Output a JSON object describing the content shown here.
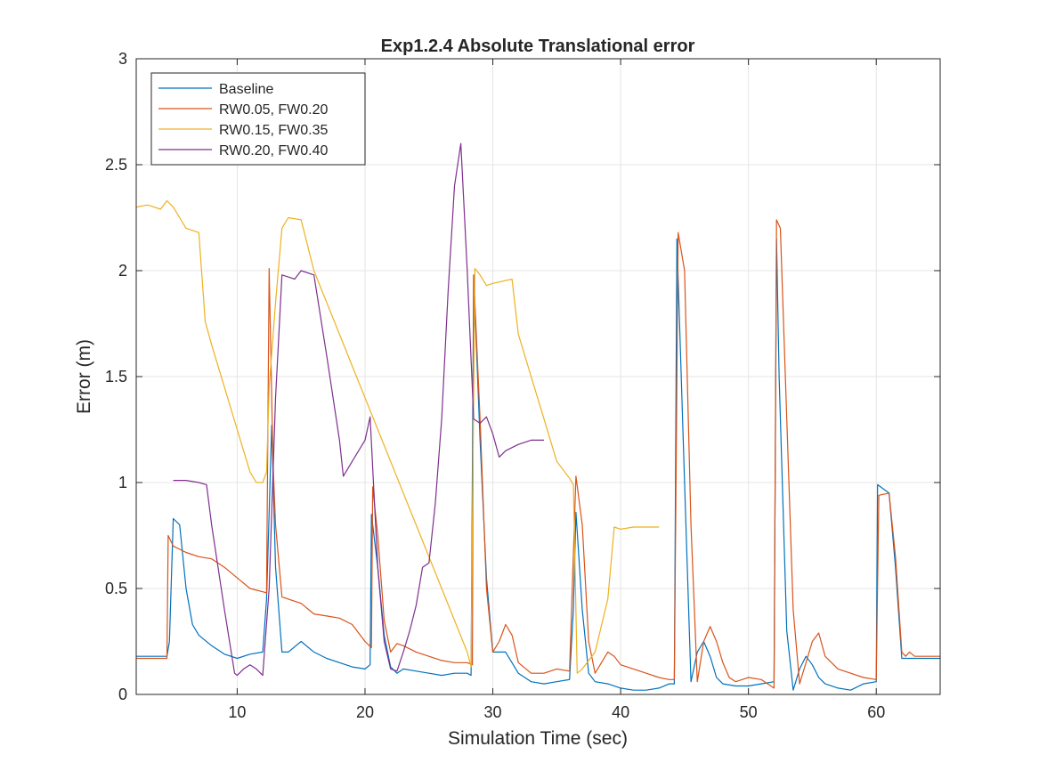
{
  "chart_data": {
    "type": "line",
    "title": "Exp1.2.4 Absolute Translational error",
    "xlabel": "Simulation Time (sec)",
    "ylabel": "Error (m)",
    "xlim": [
      2.1,
      65
    ],
    "ylim": [
      0,
      3
    ],
    "xticks": [
      10,
      20,
      30,
      40,
      50,
      60
    ],
    "yticks": [
      0,
      0.5,
      1,
      1.5,
      2,
      2.5,
      3
    ],
    "xtick_labels": [
      "10",
      "20",
      "30",
      "40",
      "50",
      "60"
    ],
    "ytick_labels": [
      "0",
      "0.5",
      "1",
      "1.5",
      "2",
      "2.5",
      "3"
    ],
    "grid": true,
    "legend_position": "top-left",
    "series": [
      {
        "name": "Baseline",
        "color": "#0072BD",
        "x": [
          2.1,
          4.5,
          4.7,
          5.0,
          5.5,
          6.0,
          6.5,
          7.0,
          8.0,
          9.0,
          10.0,
          11.0,
          12.0,
          12.3,
          12.7,
          13.0,
          13.5,
          14.0,
          15.0,
          16.0,
          17.0,
          18.0,
          19.0,
          20.0,
          20.4,
          20.5,
          21.0,
          21.5,
          22.0,
          22.5,
          23.0,
          24.0,
          25.0,
          26.0,
          27.0,
          28.0,
          28.3,
          28.5,
          29.0,
          29.5,
          30.0,
          31.0,
          32.0,
          33.0,
          34.0,
          35.0,
          36.0,
          36.3,
          36.5,
          37.0,
          37.5,
          38.0,
          39.0,
          40.0,
          41.0,
          42.0,
          43.0,
          43.8,
          44.2,
          44.4,
          45.0,
          45.5,
          46.0,
          46.5,
          47.0,
          47.5,
          48.0,
          49.0,
          50.0,
          51.0,
          52.0,
          52.2,
          52.4,
          53.0,
          53.5,
          54.0,
          54.5,
          55.0,
          55.5,
          56.0,
          57.0,
          58.0,
          59.0,
          60.0,
          60.1,
          61.0,
          61.5,
          62.0,
          63.0,
          64.0,
          65.0
        ],
        "y": [
          0.18,
          0.18,
          0.25,
          0.83,
          0.8,
          0.5,
          0.33,
          0.28,
          0.23,
          0.19,
          0.17,
          0.19,
          0.2,
          0.45,
          1.27,
          0.6,
          0.2,
          0.2,
          0.25,
          0.2,
          0.17,
          0.15,
          0.13,
          0.12,
          0.14,
          0.85,
          0.6,
          0.28,
          0.13,
          0.1,
          0.12,
          0.11,
          0.1,
          0.09,
          0.1,
          0.1,
          0.09,
          1.98,
          1.2,
          0.55,
          0.2,
          0.2,
          0.1,
          0.06,
          0.05,
          0.06,
          0.07,
          0.4,
          0.86,
          0.4,
          0.1,
          0.06,
          0.05,
          0.03,
          0.02,
          0.02,
          0.03,
          0.05,
          0.05,
          2.15,
          1.0,
          0.06,
          0.2,
          0.25,
          0.18,
          0.08,
          0.05,
          0.04,
          0.04,
          0.05,
          0.06,
          2.15,
          1.5,
          0.3,
          0.02,
          0.12,
          0.18,
          0.14,
          0.08,
          0.05,
          0.03,
          0.02,
          0.05,
          0.06,
          0.99,
          0.95,
          0.6,
          0.17,
          0.17,
          0.17,
          0.17
        ]
      },
      {
        "name": "RW0.05, FW0.20",
        "color": "#D95319",
        "x": [
          2.1,
          4.5,
          4.6,
          5.0,
          6.0,
          7.0,
          8.0,
          9.0,
          10.0,
          11.0,
          12.3,
          12.5,
          12.8,
          13.0,
          13.5,
          14.0,
          15.0,
          16.0,
          17.0,
          18.0,
          19.0,
          20.0,
          20.5,
          20.6,
          21.0,
          21.5,
          22.0,
          22.5,
          23.0,
          24.0,
          25.0,
          26.0,
          27.0,
          28.0,
          28.4,
          28.5,
          29.0,
          29.5,
          30.0,
          30.5,
          31.0,
          31.5,
          32.0,
          33.0,
          34.0,
          35.0,
          36.0,
          36.5,
          37.0,
          37.5,
          38.0,
          39.0,
          39.5,
          40.0,
          41.0,
          42.0,
          43.0,
          43.8,
          44.2,
          44.5,
          45.0,
          45.5,
          46.0,
          46.5,
          47.0,
          47.5,
          48.0,
          48.5,
          49.0,
          50.0,
          51.0,
          51.5,
          52.0,
          52.2,
          52.5,
          53.0,
          53.5,
          54.0,
          54.5,
          55.0,
          55.5,
          56.0,
          57.0,
          58.0,
          59.0,
          60.0,
          60.2,
          61.0,
          61.5,
          62.0,
          62.3,
          62.6,
          63.0,
          64.0,
          65.0
        ],
        "y": [
          0.17,
          0.17,
          0.75,
          0.7,
          0.67,
          0.65,
          0.64,
          0.6,
          0.55,
          0.5,
          0.48,
          2.01,
          1.1,
          0.8,
          0.46,
          0.45,
          0.43,
          0.38,
          0.37,
          0.36,
          0.33,
          0.25,
          0.22,
          0.98,
          0.75,
          0.35,
          0.2,
          0.24,
          0.23,
          0.2,
          0.18,
          0.16,
          0.15,
          0.15,
          0.14,
          1.98,
          1.3,
          0.5,
          0.2,
          0.25,
          0.33,
          0.28,
          0.15,
          0.1,
          0.1,
          0.12,
          0.11,
          1.03,
          0.8,
          0.25,
          0.1,
          0.2,
          0.18,
          0.14,
          0.12,
          0.1,
          0.08,
          0.07,
          0.07,
          2.18,
          2.0,
          0.8,
          0.06,
          0.25,
          0.32,
          0.25,
          0.15,
          0.08,
          0.06,
          0.08,
          0.07,
          0.05,
          0.03,
          2.24,
          2.2,
          1.3,
          0.4,
          0.05,
          0.15,
          0.25,
          0.29,
          0.18,
          0.12,
          0.1,
          0.08,
          0.07,
          0.94,
          0.95,
          0.65,
          0.2,
          0.18,
          0.2,
          0.18,
          0.18,
          0.18
        ]
      },
      {
        "name": "RW0.15, FW0.35",
        "color": "#EDB120",
        "x": [
          2.1,
          3.0,
          3.5,
          4.0,
          4.5,
          5.0,
          5.5,
          6.0,
          6.5,
          7.0,
          7.5,
          8.0,
          9.0,
          10.0,
          11.0,
          11.5,
          12.0,
          12.3,
          12.5,
          13.0,
          13.5,
          14.0,
          15.0,
          16.0,
          17.0,
          18.0,
          19.0,
          20.0,
          22.0,
          24.0,
          26.0,
          28.0,
          28.3,
          28.6,
          29.0,
          29.5,
          30.0,
          31.5,
          32.0,
          34.0,
          35.0,
          36.0,
          36.3,
          36.6,
          37.0,
          38.0,
          39.0,
          39.5,
          40.0,
          41.0,
          42.0,
          43.0
        ],
        "y": [
          2.3,
          2.31,
          2.3,
          2.29,
          2.33,
          2.3,
          2.25,
          2.2,
          2.19,
          2.18,
          1.76,
          1.65,
          1.45,
          1.25,
          1.05,
          1.0,
          1.0,
          1.05,
          1.45,
          1.85,
          2.2,
          2.25,
          2.24,
          2.0,
          1.85,
          1.7,
          1.55,
          1.4,
          1.1,
          0.8,
          0.5,
          0.2,
          0.13,
          2.01,
          1.98,
          1.93,
          1.94,
          1.96,
          1.7,
          1.3,
          1.1,
          1.02,
          0.99,
          0.1,
          0.12,
          0.2,
          0.45,
          0.79,
          0.78,
          0.79,
          0.79,
          0.79
        ]
      },
      {
        "name": "RW0.20, FW0.40",
        "color": "#7E2F8E",
        "x": [
          5.0,
          6.0,
          7.0,
          7.6,
          8.0,
          9.0,
          9.8,
          10.0,
          10.5,
          11.0,
          11.5,
          12.0,
          12.5,
          13.0,
          13.5,
          14.0,
          14.5,
          15.0,
          16.0,
          17.0,
          18.0,
          18.3,
          19.0,
          20.0,
          20.4,
          21.0,
          21.5,
          22.0,
          22.5,
          23.0,
          23.5,
          24.0,
          24.5,
          25.0,
          25.5,
          26.0,
          26.5,
          27.0,
          27.5,
          28.0,
          28.5,
          29.0,
          29.5,
          30.0,
          30.5,
          31.0,
          32.0,
          33.0,
          34.0
        ],
        "y": [
          1.01,
          1.01,
          1.0,
          0.99,
          0.8,
          0.4,
          0.1,
          0.09,
          0.12,
          0.14,
          0.12,
          0.09,
          0.5,
          1.4,
          1.98,
          1.97,
          1.96,
          2.0,
          1.98,
          1.6,
          1.2,
          1.03,
          1.1,
          1.2,
          1.31,
          0.6,
          0.25,
          0.12,
          0.11,
          0.2,
          0.3,
          0.42,
          0.6,
          0.62,
          0.9,
          1.3,
          1.9,
          2.4,
          2.6,
          2.0,
          1.3,
          1.28,
          1.31,
          1.23,
          1.12,
          1.15,
          1.18,
          1.2,
          1.2
        ]
      }
    ]
  }
}
